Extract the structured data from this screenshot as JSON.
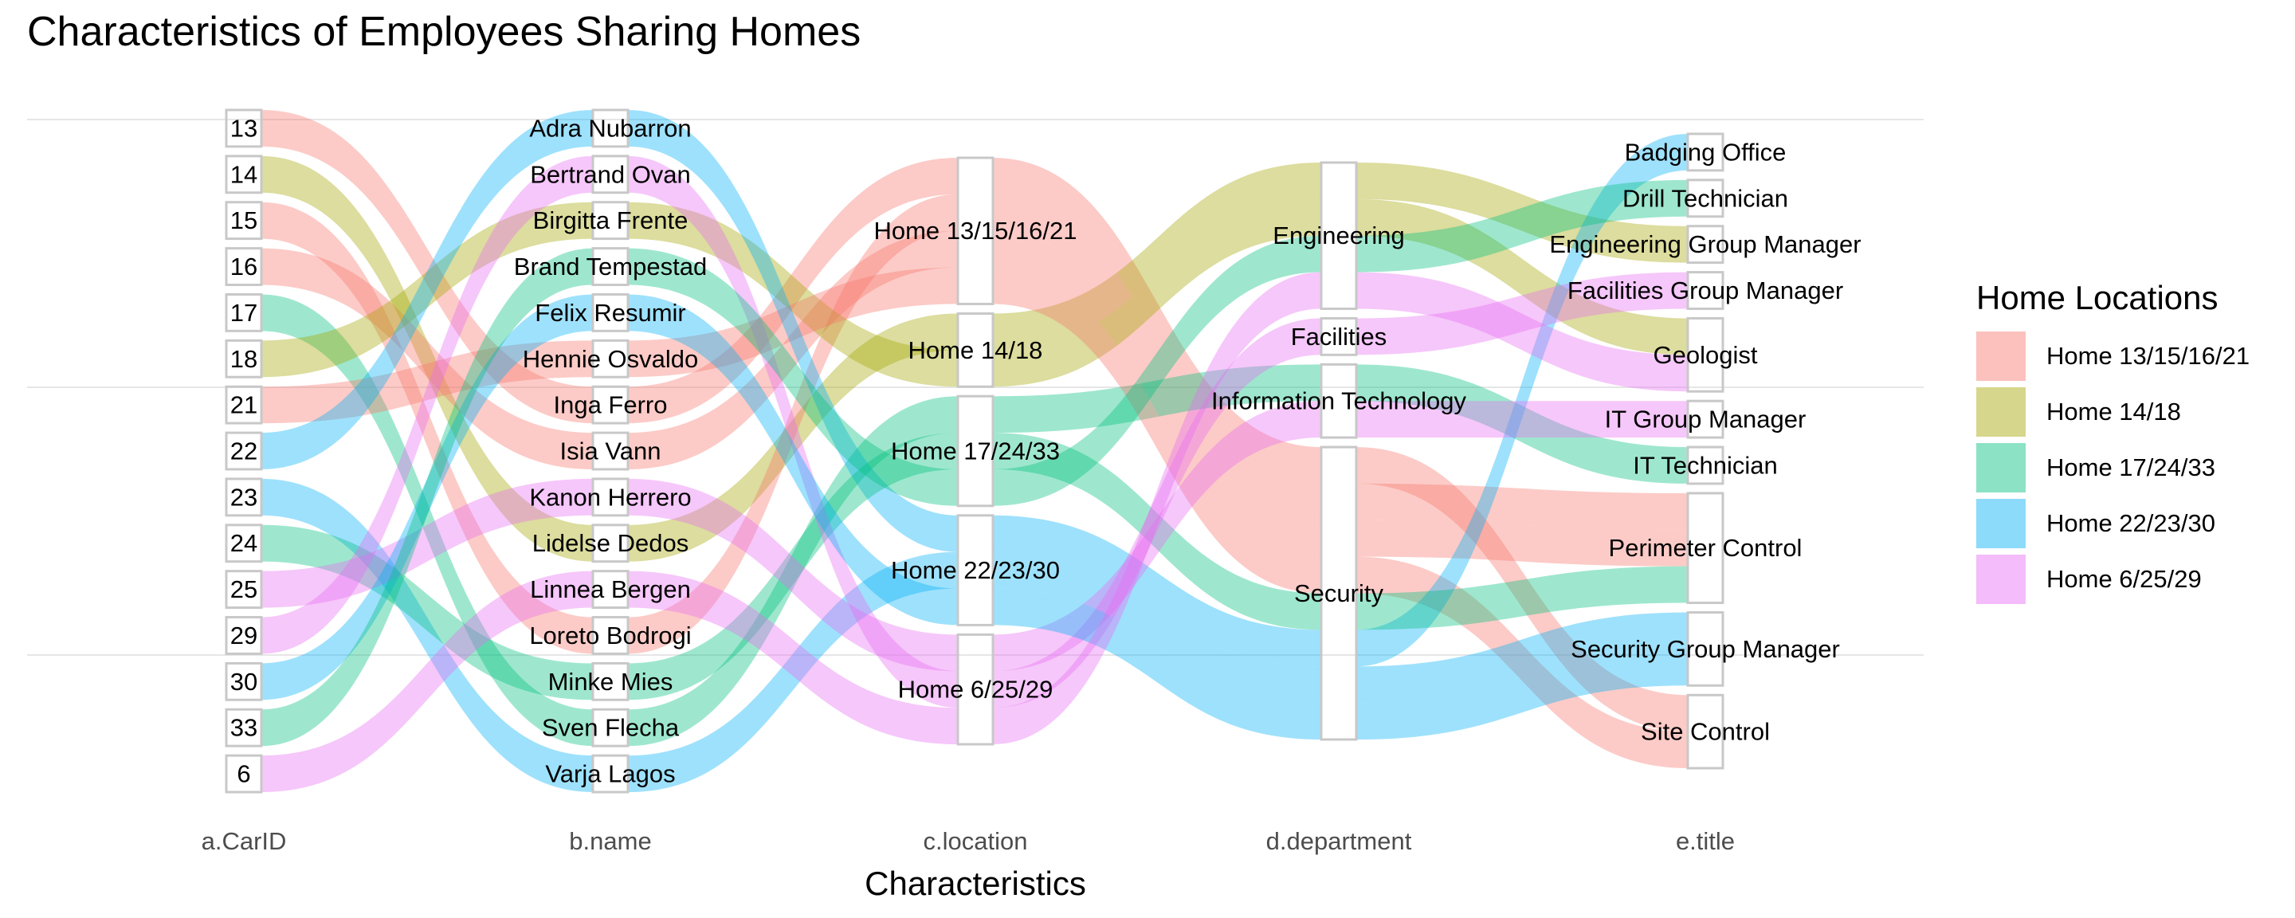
{
  "chart_data": {
    "type": "alluvial",
    "title": "Characteristics of Employees Sharing Homes",
    "xlabel": "Characteristics",
    "ylabel": "",
    "axes": [
      "a.CarID",
      "b.name",
      "c.location",
      "d.department",
      "e.title"
    ],
    "legend": {
      "title": "Home Locations",
      "position": "right",
      "entries": [
        "Home 13/15/16/21",
        "Home 14/18",
        "Home 17/24/33",
        "Home 22/23/30",
        "Home 6/25/29"
      ]
    },
    "colors": {
      "Home 13/15/16/21": "#F8766D",
      "Home 14/18": "#A3A500",
      "Home 17/24/33": "#00BF7D",
      "Home 22/23/30": "#00B0F6",
      "Home 6/25/29": "#E76BF3"
    },
    "strata": {
      "a.CarID": [
        "13",
        "14",
        "15",
        "16",
        "17",
        "18",
        "21",
        "22",
        "23",
        "24",
        "25",
        "29",
        "30",
        "33",
        "6"
      ],
      "b.name": [
        "Adra Nubarron",
        "Bertrand Ovan",
        "Birgitta Frente",
        "Brand Tempestad",
        "Felix Resumir",
        "Hennie Osvaldo",
        "Inga Ferro",
        "Isia Vann",
        "Kanon Herrero",
        "Lidelse Dedos",
        "Linnea Bergen",
        "Loreto Bodrogi",
        "Minke Mies",
        "Sven Flecha",
        "Varja Lagos"
      ],
      "c.location": [
        "Home 13/15/16/21",
        "Home 14/18",
        "Home 17/24/33",
        "Home 22/23/30",
        "Home 6/25/29"
      ],
      "d.department": [
        "Engineering",
        "Facilities",
        "Information Technology",
        "Security"
      ],
      "e.title": [
        "Badging Office",
        "Drill Technician",
        "Engineering Group Manager",
        "Facilities Group Manager",
        "Geologist",
        "IT Group Manager",
        "IT Technician",
        "Perimeter Control",
        "Security Group Manager",
        "Site Control"
      ]
    },
    "records": [
      {
        "car": "13",
        "name": "Inga Ferro",
        "location": "Home 13/15/16/21",
        "department": "Security",
        "title": "Site Control"
      },
      {
        "car": "14",
        "name": "Lidelse Dedos",
        "location": "Home 14/18",
        "department": "Engineering",
        "title": "Engineering Group Manager"
      },
      {
        "car": "15",
        "name": "Loreto Bodrogi",
        "location": "Home 13/15/16/21",
        "department": "Security",
        "title": "Perimeter Control"
      },
      {
        "car": "16",
        "name": "Isia Vann",
        "location": "Home 13/15/16/21",
        "department": "Security",
        "title": "Perimeter Control"
      },
      {
        "car": "17",
        "name": "Sven Flecha",
        "location": "Home 17/24/33",
        "department": "Information Technology",
        "title": "IT Technician"
      },
      {
        "car": "18",
        "name": "Birgitta Frente",
        "location": "Home 14/18",
        "department": "Engineering",
        "title": "Geologist"
      },
      {
        "car": "21",
        "name": "Hennie Osvaldo",
        "location": "Home 13/15/16/21",
        "department": "Security",
        "title": "Site Control"
      },
      {
        "car": "22",
        "name": "Adra Nubarron",
        "location": "Home 22/23/30",
        "department": "Security",
        "title": "Badging Office"
      },
      {
        "car": "23",
        "name": "Varja Lagos",
        "location": "Home 22/23/30",
        "department": "Security",
        "title": "Security Group Manager"
      },
      {
        "car": "24",
        "name": "Minke Mies",
        "location": "Home 17/24/33",
        "department": "Security",
        "title": "Perimeter Control"
      },
      {
        "car": "25",
        "name": "Kanon Herrero",
        "location": "Home 6/25/29",
        "department": "Information Technology",
        "title": "IT Group Manager"
      },
      {
        "car": "29",
        "name": "Bertrand Ovan",
        "location": "Home 6/25/29",
        "department": "Facilities",
        "title": "Facilities Group Manager"
      },
      {
        "car": "30",
        "name": "Felix Resumir",
        "location": "Home 22/23/30",
        "department": "Security",
        "title": "Security Group Manager"
      },
      {
        "car": "33",
        "name": "Brand Tempestad",
        "location": "Home 17/24/33",
        "department": "Engineering",
        "title": "Drill Technician"
      },
      {
        "car": "6",
        "name": "Linnea Bergen",
        "location": "Home 6/25/29",
        "department": "Engineering",
        "title": "Geologist"
      }
    ],
    "grid": true
  }
}
